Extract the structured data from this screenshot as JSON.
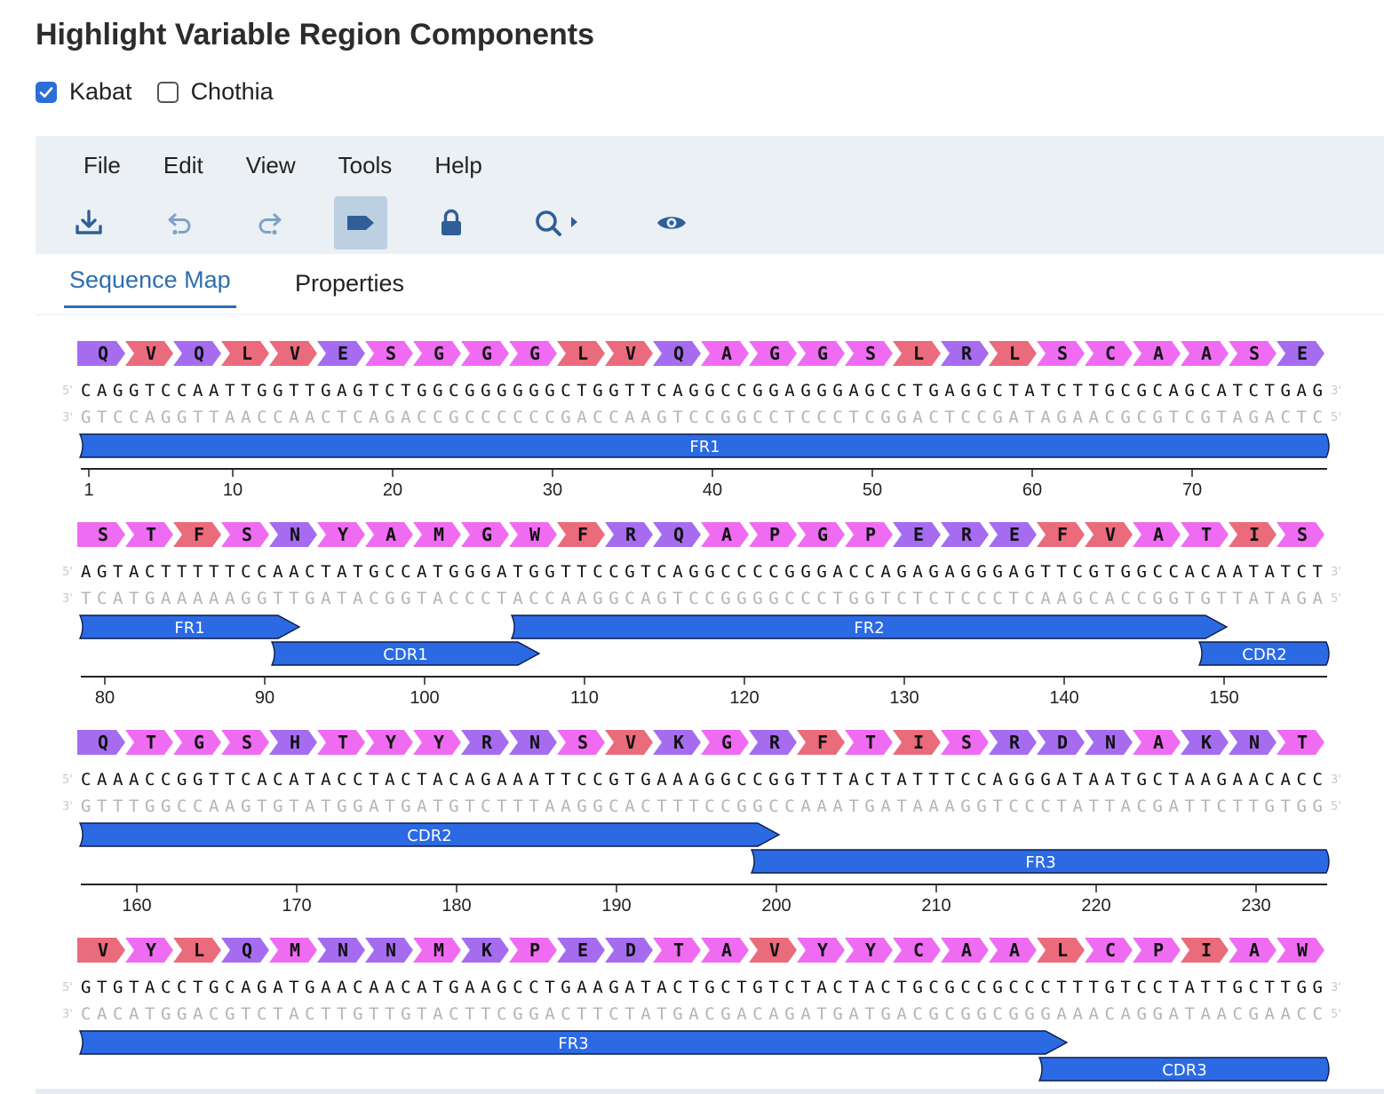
{
  "page": {
    "title": "Highlight Variable Region Components"
  },
  "schemes": [
    {
      "label": "Kabat",
      "checked": true
    },
    {
      "label": "Chothia",
      "checked": false
    }
  ],
  "menu": [
    "File",
    "Edit",
    "View",
    "Tools",
    "Help"
  ],
  "toolbar_icons": [
    "download-icon",
    "undo-icon",
    "redo-icon",
    "feature-label-icon",
    "lock-icon",
    "search-icon",
    "eye-icon"
  ],
  "tabs": {
    "sequence_map": "Sequence Map",
    "properties": "Properties"
  },
  "colors": {
    "feature_blue": "#2b6ae3",
    "aa_purple": "#a56cf0",
    "aa_magenta": "#ef6cf2",
    "aa_red": "#ea6b7c"
  },
  "strand_labels": {
    "five_prime": "5'",
    "three_prime": "3'"
  },
  "rows": [
    {
      "aa": [
        "Q",
        "V",
        "Q",
        "L",
        "V",
        "E",
        "S",
        "G",
        "G",
        "G",
        "L",
        "V",
        "Q",
        "A",
        "G",
        "G",
        "S",
        "L",
        "R",
        "L",
        "S",
        "C",
        "A",
        "A",
        "S",
        "E"
      ],
      "top": "CAGGTCCAATTGGTTGAGTCTGGCGGGGGGCTGGTTCAGGCCGGAGGGAGCCTGAGGCTATCTTGCGCAGCATCTGAG",
      "bottom": "GTCCAGGTTAACCAACTCAGACCGCCCCCCGACCAAGTCCGGCCTCCCTCGGACTCCGATAGAACGCGTCGTAGACTC",
      "features": [
        {
          "name": "FR1",
          "start": 1,
          "end": 78,
          "lane": 0
        }
      ],
      "ticks": [
        "1",
        "10",
        "20",
        "30",
        "40",
        "50",
        "60",
        "70"
      ]
    },
    {
      "aa": [
        "S",
        "T",
        "F",
        "S",
        "N",
        "Y",
        "A",
        "M",
        "G",
        "W",
        "F",
        "R",
        "Q",
        "A",
        "P",
        "G",
        "P",
        "E",
        "R",
        "E",
        "F",
        "V",
        "A",
        "T",
        "I",
        "S"
      ],
      "top": "AGTACTTTTTCCAACTATGCCATGGGATGGTTCCGTCAGGCCCCGGGACCAGAGAGGGAGTTCGTGGCCACAATATCT",
      "bottom": "TCATGAAAAAGGTTGATACGGTACCCTACCAAGGCAGTCCGGGGCCCTGGTCTCTCCCTCAAGCACCGGTGTTATAGA",
      "features": [
        {
          "name": "FR1",
          "start": 79,
          "end": 91,
          "lane": 0
        },
        {
          "name": "CDR1",
          "start": 91,
          "end": 106,
          "lane": 1
        },
        {
          "name": "FR2",
          "start": 106,
          "end": 149,
          "lane": 0
        },
        {
          "name": "CDR2",
          "start": 149,
          "end": 156,
          "lane": 1
        }
      ],
      "ticks": [
        "80",
        "90",
        "100",
        "110",
        "120",
        "130",
        "140",
        "150"
      ]
    },
    {
      "aa": [
        "Q",
        "T",
        "G",
        "S",
        "H",
        "T",
        "Y",
        "Y",
        "R",
        "N",
        "S",
        "V",
        "K",
        "G",
        "R",
        "F",
        "T",
        "I",
        "S",
        "R",
        "D",
        "N",
        "A",
        "K",
        "N",
        "T"
      ],
      "top": "CAAACCGGTTCACATACCTACTACAGAAATTCCGTGAAAGGCCGGTTTACTATTTCCAGGGATAATGCTAAGAACACC",
      "bottom": "GTTTGGCCAAGTGTATGGATGATGTCTTTAAGGCACTTTCCGGCCAAATGATAAAGGTCCCTATTACGATTCTTGTGG",
      "features": [
        {
          "name": "CDR2",
          "start": 157,
          "end": 199,
          "lane": 0
        },
        {
          "name": "FR3",
          "start": 199,
          "end": 234,
          "lane": 1
        }
      ],
      "ticks": [
        "160",
        "170",
        "180",
        "190",
        "200",
        "210",
        "220",
        "230"
      ]
    },
    {
      "aa": [
        "V",
        "Y",
        "L",
        "Q",
        "M",
        "N",
        "N",
        "M",
        "K",
        "P",
        "E",
        "D",
        "T",
        "A",
        "V",
        "Y",
        "Y",
        "C",
        "A",
        "A",
        "L",
        "C",
        "P",
        "I",
        "A",
        "W"
      ],
      "top": "GTGTACCTGCAGATGAACAACATGAAGCCTGAAGATACTGCTGTCTACTACTGCGCCGCCCTTTGTCCTATTGCTTGG",
      "bottom": "CACATGGACGTCTACTTGTTGTACTTCGGACTTCTATGACGACAGATGATGACGCGGCGGGAAACAGGATAACGAACC",
      "features": [
        {
          "name": "FR3",
          "start": 235,
          "end": 295,
          "lane": 0
        },
        {
          "name": "CDR3",
          "start": 295,
          "end": 312,
          "lane": 1
        }
      ],
      "ticks": []
    }
  ]
}
